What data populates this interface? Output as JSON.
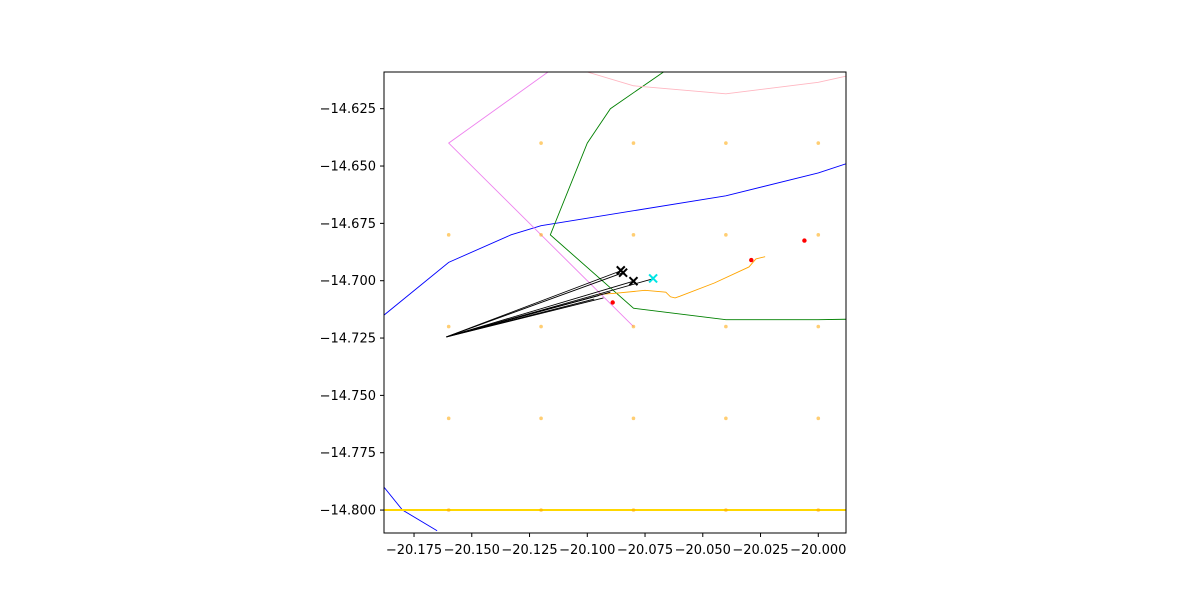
{
  "chart_data": {
    "type": "line",
    "title": "",
    "xlabel": "",
    "ylabel": "",
    "xlim": [
      -20.188,
      -19.988
    ],
    "ylim": [
      -14.81,
      -14.609
    ],
    "grid": false,
    "x_ticks": [
      -20.175,
      -20.15,
      -20.125,
      -20.1,
      -20.075,
      -20.05,
      -20.025,
      -20.0
    ],
    "x_tick_labels": [
      "−20.175",
      "−20.150",
      "−20.125",
      "−20.100",
      "−20.075",
      "−20.050",
      "−20.025",
      "−20.000"
    ],
    "y_ticks": [
      -14.625,
      -14.65,
      -14.675,
      -14.7,
      -14.725,
      -14.75,
      -14.775,
      -14.8
    ],
    "y_tick_labels": [
      "−14.625",
      "−14.650",
      "−14.675",
      "−14.700",
      "−14.725",
      "−14.750",
      "−14.775",
      "−14.800"
    ],
    "series": [
      {
        "kind": "line",
        "color": "#0000ff",
        "x": [
          -20.188,
          -20.16,
          -20.133,
          -20.12,
          -20.04,
          -20.0,
          -19.988
        ],
        "y": [
          -14.715,
          -14.692,
          -14.68,
          -14.676,
          -14.663,
          -14.653,
          -14.649
        ]
      },
      {
        "kind": "line",
        "color": "#0000ff",
        "x": [
          -20.188,
          -20.18,
          -20.165
        ],
        "y": [
          -14.79,
          -14.8,
          -14.809
        ]
      },
      {
        "kind": "line",
        "color": "#008000",
        "x": [
          -20.067,
          -20.09,
          -20.1,
          -20.116,
          -20.08,
          -20.04,
          -20.0,
          -19.988
        ],
        "y": [
          -14.609,
          -14.625,
          -14.64,
          -14.68,
          -14.712,
          -14.717,
          -14.717,
          -14.7168
        ]
      },
      {
        "kind": "line",
        "color": "#ee82ee",
        "x": [
          -20.117,
          -20.16,
          -20.08
        ],
        "y": [
          -14.609,
          -14.64,
          -14.72
        ]
      },
      {
        "kind": "line",
        "color": "#ffb6c1",
        "x": [
          -20.1,
          -20.08,
          -20.04,
          -20.0,
          -19.988
        ],
        "y": [
          -14.609,
          -14.615,
          -14.6185,
          -14.6135,
          -14.6108
        ]
      },
      {
        "kind": "line",
        "color": "#ffa500",
        "x": [
          -20.095,
          -20.088,
          -20.075,
          -20.066,
          -20.064,
          -20.062,
          -20.06,
          -20.045,
          -20.03,
          -20.027,
          -20.023
        ],
        "y": [
          -14.706,
          -14.7055,
          -14.7042,
          -14.705,
          -14.707,
          -14.7075,
          -14.7068,
          -14.701,
          -14.694,
          -14.6905,
          -14.6895
        ]
      },
      {
        "kind": "line",
        "color": "#ffd700",
        "width": 2,
        "x": [
          -20.188,
          -19.988
        ],
        "y": [
          -14.8,
          -14.8
        ]
      },
      {
        "kind": "line",
        "color": "#000000",
        "x": [
          -20.085,
          -20.161,
          -20.095
        ],
        "y": [
          -14.6955,
          -14.7245,
          -14.7065
        ]
      },
      {
        "kind": "line",
        "color": "#000000",
        "x": [
          -20.0845,
          -20.161,
          -20.093
        ],
        "y": [
          -14.6965,
          -14.7245,
          -14.7075
        ]
      },
      {
        "kind": "line",
        "color": "#000000",
        "x": [
          -20.08,
          -20.161,
          -20.097
        ],
        "y": [
          -14.7002,
          -14.7245,
          -14.708
        ]
      },
      {
        "kind": "line",
        "color": "#000000",
        "x": [
          -20.071,
          -20.161,
          -20.09
        ],
        "y": [
          -14.699,
          -14.7245,
          -14.705
        ]
      },
      {
        "kind": "scatter",
        "marker": "dot",
        "color": "#ffa500",
        "opacity": 0.55,
        "x": [
          -20.12,
          -20.08,
          -20.04,
          -20.0,
          -20.16,
          -20.12,
          -20.08,
          -20.04,
          -20.0,
          -20.16,
          -20.12,
          -20.08,
          -20.04,
          -20.0,
          -20.16,
          -20.12,
          -20.08,
          -20.04,
          -20.0,
          -20.16,
          -20.12,
          -20.08,
          -20.04,
          -20.0
        ],
        "y": [
          -14.64,
          -14.64,
          -14.64,
          -14.64,
          -14.68,
          -14.68,
          -14.68,
          -14.68,
          -14.68,
          -14.72,
          -14.72,
          -14.72,
          -14.72,
          -14.72,
          -14.76,
          -14.76,
          -14.76,
          -14.76,
          -14.76,
          -14.8,
          -14.8,
          -14.8,
          -14.8,
          -14.8
        ]
      },
      {
        "kind": "scatter",
        "marker": "dot",
        "color": "#ff0000",
        "opacity": 1,
        "x": [
          -20.006,
          -20.029,
          -20.089
        ],
        "y": [
          -14.6825,
          -14.691,
          -14.7095
        ]
      },
      {
        "kind": "scatter",
        "marker": "x",
        "color": "#000000",
        "x": [
          -20.0855,
          -20.0845,
          -20.08
        ],
        "y": [
          -14.6955,
          -14.6965,
          -14.7002
        ]
      },
      {
        "kind": "scatter",
        "marker": "x",
        "color": "#00e5e5",
        "x": [
          -20.0715
        ],
        "y": [
          -14.699
        ]
      }
    ]
  }
}
